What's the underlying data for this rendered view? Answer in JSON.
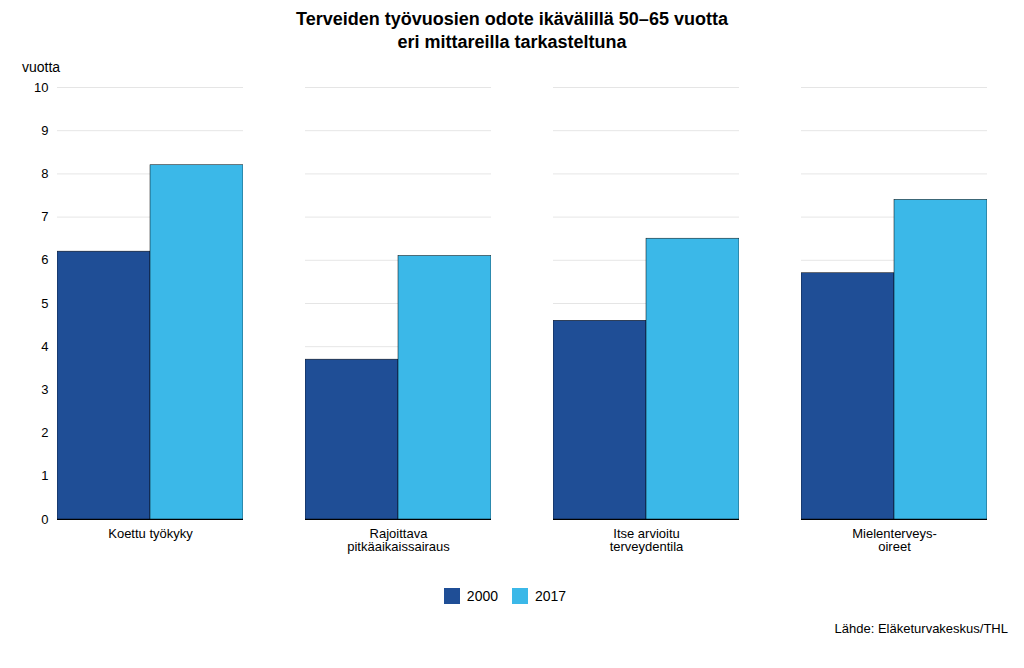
{
  "chart_data": {
    "type": "bar",
    "title": "Terveiden työvuosien odote ikävälillä 50–65 vuotta\neri mittareilla tarkasteltuna",
    "ylabel": "vuotta",
    "categories": [
      "Koettu työkyky",
      "Rajoittava\npitkäaikaissairaus",
      "Itse arvioitu\nterveydentila",
      "Mielenterveys-\noireet"
    ],
    "series": [
      {
        "name": "2000",
        "color": "#1F4E96",
        "values": [
          6.2,
          3.7,
          4.6,
          5.7
        ]
      },
      {
        "name": "2017",
        "color": "#3BB8E8",
        "values": [
          8.2,
          6.1,
          6.5,
          7.4
        ]
      }
    ],
    "ylim": [
      0,
      10
    ],
    "yticks": [
      0,
      1,
      2,
      3,
      4,
      5,
      6,
      7,
      8,
      9,
      10
    ],
    "grid": true,
    "legend": "bottom",
    "source": "Lähde: Eläketurvakeskus/THL"
  }
}
